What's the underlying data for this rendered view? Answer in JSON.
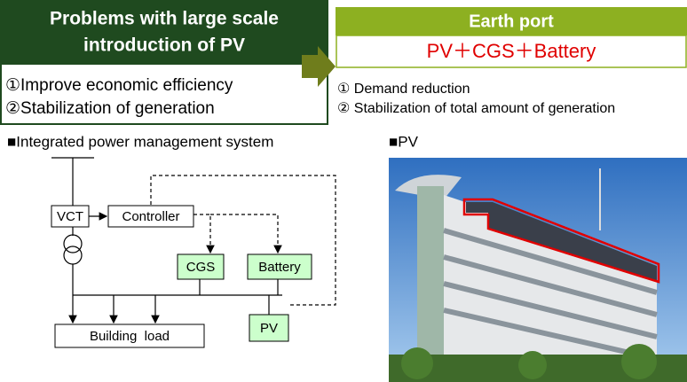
{
  "problems": {
    "title_lines": [
      "Problems with large scale",
      "introduction of PV"
    ],
    "items": [
      "①Improve economic efficiency",
      "②Stabilization of generation"
    ]
  },
  "solution": {
    "title": "Earth port",
    "formula": "PV＋CGS＋Battery",
    "items": [
      "① Demand reduction",
      "② Stabilization of total amount of generation"
    ]
  },
  "diagram": {
    "heading": "■Integrated power management system",
    "nodes": [
      "VCT",
      "Controller",
      "CGS",
      "Battery",
      "PV",
      "Building  load"
    ]
  },
  "photo": {
    "heading": "■PV"
  }
}
